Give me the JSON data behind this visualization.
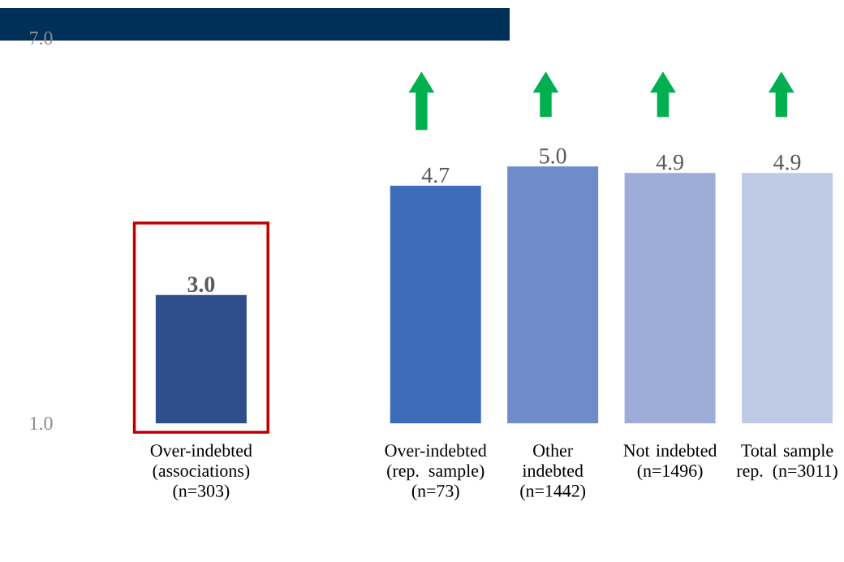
{
  "chart_data": {
    "type": "bar",
    "categories": [
      "Over-indebted (associations) (n=303)",
      null,
      "Over-indebted (rep. sample) (n=73)",
      "Other indebted (n=1442)",
      "Not indebted (n=1496)",
      "Total sample rep. (n=3011)"
    ],
    "values": [
      3.0,
      null,
      4.7,
      5.0,
      4.9,
      4.9
    ],
    "colors": [
      "#2f4f8c",
      "#ffffff",
      "#3e6cba",
      "#6f8bca",
      "#9dadd8",
      "#bfcae5"
    ],
    "value_labels": [
      "3.0",
      null,
      "4.7",
      "5.0",
      "4.9",
      "4.9"
    ],
    "ylim": [
      1,
      7
    ],
    "yticks": [
      {
        "value": 1,
        "label": "1.0"
      },
      {
        "value": 7,
        "label": "7.0"
      }
    ],
    "grid": false
  }
}
